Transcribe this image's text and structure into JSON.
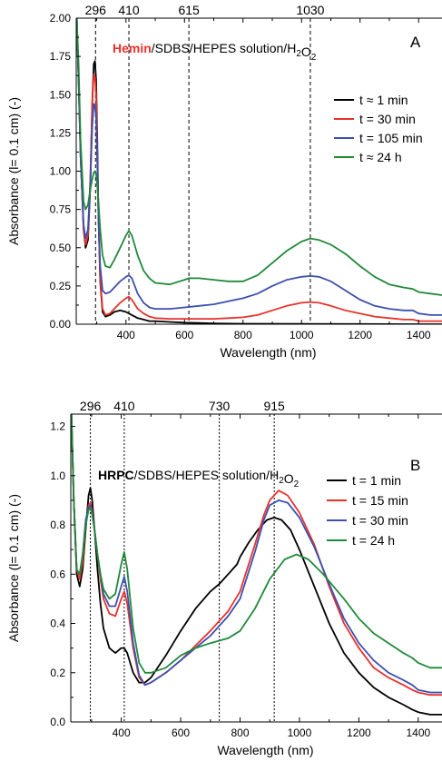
{
  "chart_data": [
    {
      "type": "line",
      "panel_label": "A",
      "title_parts": [
        {
          "text": "Hemin",
          "bold": true,
          "color": "#e8322a"
        },
        {
          "text": "/SDBS/HEPES solution/H",
          "bold": false,
          "color": "#000000"
        },
        {
          "text": "2",
          "bold": false,
          "color": "#000000",
          "sub": true
        },
        {
          "text": "O",
          "bold": false,
          "color": "#000000"
        },
        {
          "text": "2",
          "bold": false,
          "color": "#000000",
          "sub": true
        }
      ],
      "xlabel": "Wavelength (nm)",
      "ylabel": "Absorbance (l= 0.1 cm) (-)",
      "xlim": [
        230,
        1480
      ],
      "ylim": [
        0,
        2.0
      ],
      "x_ticks": [
        400,
        600,
        800,
        1000,
        1200,
        1400
      ],
      "y_ticks": [
        0.0,
        0.25,
        0.5,
        0.75,
        1.0,
        1.25,
        1.5,
        1.75,
        2.0
      ],
      "y_tick_labels": [
        "0.00",
        "0.25",
        "0.50",
        "0.75",
        "1.00",
        "1.25",
        "1.50",
        "1.75",
        "2.00"
      ],
      "reference_lines": [
        {
          "x": 296,
          "label": "296"
        },
        {
          "x": 410,
          "label": "410"
        },
        {
          "x": 615,
          "label": "615"
        },
        {
          "x": 1030,
          "label": "1030"
        }
      ],
      "legend_position": "right",
      "series": [
        {
          "name": "t ≈ 1 min",
          "color": "#000000",
          "x": [
            232,
            238,
            245,
            255,
            262,
            270,
            278,
            285,
            290,
            294,
            298,
            302,
            306,
            312,
            320,
            330,
            345,
            360,
            380,
            400,
            420,
            440,
            460,
            480,
            500,
            550,
            600,
            650,
            700,
            800,
            1000,
            1200,
            1400,
            1480
          ],
          "y": [
            2.0,
            1.6,
            1.1,
            0.62,
            0.5,
            0.55,
            0.9,
            1.45,
            1.7,
            1.72,
            1.6,
            1.2,
            0.7,
            0.28,
            0.08,
            0.05,
            0.06,
            0.08,
            0.09,
            0.08,
            0.06,
            0.04,
            0.03,
            0.02,
            0.02,
            0.015,
            0.01,
            0.008,
            0.005,
            0.003,
            0.002,
            0.001,
            0.0,
            0.0
          ]
        },
        {
          "name": "t = 30 min",
          "color": "#e8322a",
          "x": [
            232,
            238,
            245,
            255,
            262,
            270,
            278,
            285,
            290,
            294,
            298,
            302,
            306,
            312,
            320,
            330,
            345,
            360,
            380,
            400,
            410,
            420,
            440,
            460,
            480,
            500,
            550,
            600,
            650,
            700,
            750,
            800,
            850,
            900,
            950,
            1000,
            1030,
            1060,
            1100,
            1150,
            1200,
            1250,
            1300,
            1350,
            1380,
            1400,
            1440,
            1480
          ],
          "y": [
            2.0,
            1.6,
            1.1,
            0.62,
            0.52,
            0.58,
            0.95,
            1.45,
            1.63,
            1.62,
            1.5,
            1.1,
            0.7,
            0.3,
            0.1,
            0.06,
            0.07,
            0.1,
            0.14,
            0.17,
            0.18,
            0.16,
            0.1,
            0.07,
            0.05,
            0.04,
            0.035,
            0.035,
            0.035,
            0.035,
            0.04,
            0.045,
            0.06,
            0.09,
            0.12,
            0.14,
            0.145,
            0.14,
            0.12,
            0.09,
            0.07,
            0.05,
            0.04,
            0.03,
            0.03,
            0.02,
            0.02,
            0.02
          ]
        },
        {
          "name": "t = 105 min",
          "color": "#3c4faf",
          "x": [
            232,
            238,
            245,
            255,
            262,
            270,
            278,
            285,
            290,
            294,
            298,
            302,
            306,
            312,
            320,
            330,
            345,
            360,
            380,
            400,
            410,
            420,
            440,
            460,
            480,
            500,
            550,
            600,
            650,
            700,
            750,
            800,
            850,
            900,
            950,
            1000,
            1030,
            1060,
            1100,
            1150,
            1200,
            1250,
            1300,
            1350,
            1380,
            1400,
            1440,
            1480
          ],
          "y": [
            2.0,
            1.6,
            1.1,
            0.65,
            0.56,
            0.62,
            0.92,
            1.3,
            1.44,
            1.43,
            1.35,
            1.05,
            0.7,
            0.38,
            0.22,
            0.2,
            0.21,
            0.24,
            0.28,
            0.31,
            0.32,
            0.3,
            0.2,
            0.14,
            0.11,
            0.1,
            0.1,
            0.11,
            0.12,
            0.13,
            0.15,
            0.17,
            0.2,
            0.25,
            0.29,
            0.31,
            0.315,
            0.31,
            0.28,
            0.22,
            0.16,
            0.12,
            0.1,
            0.09,
            0.09,
            0.07,
            0.06,
            0.06
          ]
        },
        {
          "name": "t ≈ 24 h",
          "color": "#1f8a3a",
          "x": [
            232,
            238,
            245,
            255,
            262,
            270,
            278,
            285,
            290,
            294,
            298,
            302,
            306,
            312,
            320,
            330,
            345,
            360,
            380,
            400,
            410,
            420,
            440,
            460,
            480,
            500,
            550,
            600,
            615,
            650,
            700,
            750,
            800,
            850,
            900,
            950,
            1000,
            1030,
            1060,
            1100,
            1150,
            1200,
            1250,
            1300,
            1350,
            1380,
            1400,
            1440,
            1480
          ],
          "y": [
            2.0,
            1.7,
            1.2,
            0.8,
            0.75,
            0.78,
            0.88,
            0.95,
            0.99,
            1.0,
            0.98,
            0.9,
            0.8,
            0.62,
            0.45,
            0.38,
            0.37,
            0.42,
            0.5,
            0.58,
            0.61,
            0.58,
            0.45,
            0.35,
            0.3,
            0.27,
            0.26,
            0.29,
            0.3,
            0.3,
            0.29,
            0.28,
            0.28,
            0.32,
            0.4,
            0.48,
            0.54,
            0.56,
            0.55,
            0.52,
            0.46,
            0.38,
            0.31,
            0.26,
            0.24,
            0.23,
            0.21,
            0.2,
            0.19
          ]
        }
      ]
    },
    {
      "type": "line",
      "panel_label": "B",
      "title_parts": [
        {
          "text": "HRPC",
          "bold": true,
          "color": "#000000"
        },
        {
          "text": "/SDBS/HEPES solution/H",
          "bold": false,
          "color": "#000000"
        },
        {
          "text": "2",
          "bold": false,
          "color": "#000000",
          "sub": true
        },
        {
          "text": "O",
          "bold": false,
          "color": "#000000"
        },
        {
          "text": "2",
          "bold": false,
          "color": "#000000",
          "sub": true
        }
      ],
      "xlabel": "Wavelength (nm)",
      "ylabel": "Absorbance (l= 0.1 cm) (-)",
      "xlim": [
        230,
        1480
      ],
      "ylim": [
        0,
        1.25
      ],
      "x_ticks": [
        400,
        600,
        800,
        1000,
        1200,
        1400
      ],
      "y_ticks": [
        0.0,
        0.2,
        0.4,
        0.6,
        0.8,
        1.0,
        1.2
      ],
      "y_tick_labels": [
        "0.0",
        "0.2",
        "0.4",
        "0.6",
        "0.8",
        "1.0",
        "1.2"
      ],
      "reference_lines": [
        {
          "x": 296,
          "label": "296"
        },
        {
          "x": 410,
          "label": "410"
        },
        {
          "x": 730,
          "label": "730"
        },
        {
          "x": 915,
          "label": "915"
        }
      ],
      "legend_position": "right",
      "series": [
        {
          "name": "t = 1 min",
          "color": "#000000",
          "x": [
            232,
            240,
            250,
            260,
            270,
            280,
            290,
            296,
            302,
            310,
            320,
            330,
            340,
            360,
            380,
            400,
            410,
            420,
            440,
            460,
            480,
            500,
            550,
            600,
            650,
            700,
            730,
            760,
            790,
            800,
            830,
            860,
            890,
            915,
            940,
            970,
            1000,
            1050,
            1100,
            1150,
            1200,
            1250,
            1300,
            1350,
            1380,
            1400,
            1440,
            1480
          ],
          "y": [
            1.25,
            0.9,
            0.6,
            0.55,
            0.62,
            0.78,
            0.92,
            0.95,
            0.9,
            0.78,
            0.62,
            0.48,
            0.38,
            0.3,
            0.28,
            0.3,
            0.3,
            0.28,
            0.2,
            0.16,
            0.16,
            0.18,
            0.27,
            0.37,
            0.46,
            0.53,
            0.56,
            0.6,
            0.64,
            0.67,
            0.73,
            0.78,
            0.82,
            0.83,
            0.82,
            0.78,
            0.7,
            0.55,
            0.4,
            0.28,
            0.2,
            0.14,
            0.1,
            0.07,
            0.05,
            0.04,
            0.03,
            0.03
          ]
        },
        {
          "name": "t = 15 min",
          "color": "#e8322a",
          "x": [
            232,
            240,
            250,
            260,
            270,
            280,
            290,
            296,
            302,
            310,
            320,
            330,
            340,
            360,
            380,
            400,
            410,
            420,
            440,
            460,
            480,
            500,
            550,
            600,
            650,
            700,
            730,
            760,
            800,
            850,
            880,
            900,
            930,
            960,
            1000,
            1050,
            1100,
            1150,
            1200,
            1250,
            1300,
            1350,
            1380,
            1400,
            1440,
            1480
          ],
          "y": [
            1.25,
            0.9,
            0.62,
            0.58,
            0.65,
            0.8,
            0.88,
            0.89,
            0.86,
            0.78,
            0.68,
            0.58,
            0.5,
            0.44,
            0.43,
            0.5,
            0.53,
            0.48,
            0.3,
            0.18,
            0.15,
            0.16,
            0.2,
            0.25,
            0.31,
            0.37,
            0.41,
            0.45,
            0.53,
            0.72,
            0.84,
            0.9,
            0.94,
            0.92,
            0.85,
            0.72,
            0.55,
            0.4,
            0.3,
            0.22,
            0.18,
            0.15,
            0.13,
            0.12,
            0.11,
            0.11
          ]
        },
        {
          "name": "t = 30 min",
          "color": "#3c4faf",
          "x": [
            232,
            240,
            250,
            260,
            270,
            280,
            290,
            296,
            302,
            310,
            320,
            330,
            340,
            360,
            380,
            400,
            410,
            420,
            440,
            460,
            480,
            500,
            550,
            600,
            650,
            700,
            730,
            760,
            800,
            850,
            880,
            900,
            930,
            960,
            1000,
            1050,
            1100,
            1150,
            1200,
            1250,
            1300,
            1350,
            1380,
            1400,
            1440,
            1480
          ],
          "y": [
            1.25,
            0.9,
            0.62,
            0.6,
            0.68,
            0.82,
            0.87,
            0.88,
            0.85,
            0.78,
            0.68,
            0.6,
            0.52,
            0.47,
            0.47,
            0.55,
            0.59,
            0.53,
            0.32,
            0.19,
            0.15,
            0.16,
            0.2,
            0.25,
            0.3,
            0.35,
            0.39,
            0.43,
            0.5,
            0.69,
            0.82,
            0.88,
            0.9,
            0.89,
            0.83,
            0.71,
            0.56,
            0.42,
            0.32,
            0.25,
            0.2,
            0.17,
            0.15,
            0.13,
            0.12,
            0.12
          ]
        },
        {
          "name": "t = 24 h",
          "color": "#1f8a3a",
          "x": [
            232,
            240,
            250,
            260,
            270,
            280,
            290,
            296,
            302,
            310,
            320,
            330,
            340,
            360,
            380,
            400,
            410,
            420,
            440,
            460,
            480,
            500,
            550,
            600,
            650,
            700,
            730,
            760,
            800,
            850,
            900,
            950,
            990,
            1030,
            1080,
            1150,
            1200,
            1250,
            1300,
            1350,
            1380,
            1400,
            1440,
            1480
          ],
          "y": [
            1.25,
            0.9,
            0.62,
            0.6,
            0.68,
            0.8,
            0.86,
            0.87,
            0.84,
            0.78,
            0.68,
            0.6,
            0.54,
            0.5,
            0.52,
            0.64,
            0.69,
            0.62,
            0.38,
            0.24,
            0.2,
            0.2,
            0.22,
            0.27,
            0.3,
            0.32,
            0.33,
            0.34,
            0.37,
            0.46,
            0.58,
            0.66,
            0.68,
            0.66,
            0.6,
            0.5,
            0.42,
            0.36,
            0.32,
            0.28,
            0.26,
            0.24,
            0.22,
            0.22
          ]
        }
      ]
    }
  ]
}
